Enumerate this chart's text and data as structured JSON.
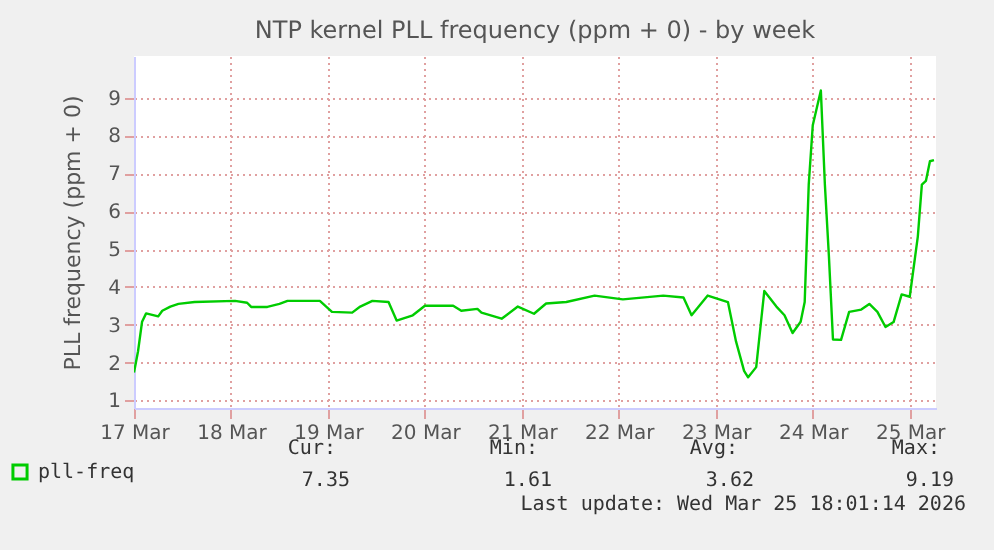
{
  "chart_data": {
    "type": "line",
    "title": "NTP kernel PLL frequency (ppm + 0) - by week",
    "ylabel": "PLL frequency (ppm + 0)",
    "x": [
      "2026-03-17T00:00",
      "2026-03-17T01:00",
      "2026-03-17T02:00",
      "2026-03-17T03:00",
      "2026-03-17T06:00",
      "2026-03-17T07:00",
      "2026-03-17T09:00",
      "2026-03-17T11:00",
      "2026-03-17T15:00",
      "2026-03-18T01:00",
      "2026-03-18T04:00",
      "2026-03-18T05:00",
      "2026-03-18T09:00",
      "2026-03-18T12:00",
      "2026-03-18T14:00",
      "2026-03-18T22:00",
      "2026-03-19T01:00",
      "2026-03-19T06:00",
      "2026-03-19T08:00",
      "2026-03-19T11:00",
      "2026-03-19T15:00",
      "2026-03-19T17:00",
      "2026-03-19T21:00",
      "2026-03-20T00:00",
      "2026-03-20T07:00",
      "2026-03-20T09:00",
      "2026-03-20T13:00",
      "2026-03-20T14:00",
      "2026-03-20T19:00",
      "2026-03-20T23:00",
      "2026-03-21T03:00",
      "2026-03-21T06:00",
      "2026-03-21T11:00",
      "2026-03-21T18:00",
      "2026-03-22T01:00",
      "2026-03-22T11:00",
      "2026-03-22T16:00",
      "2026-03-22T18:00",
      "2026-03-22T22:00",
      "2026-03-23T03:00",
      "2026-03-23T05:00",
      "2026-03-23T07:00",
      "2026-03-23T08:00",
      "2026-03-23T10:00",
      "2026-03-23T12:00",
      "2026-03-23T15:00",
      "2026-03-23T17:00",
      "2026-03-23T19:00",
      "2026-03-23T21:00",
      "2026-03-23T22:00",
      "2026-03-23T23:00",
      "2026-03-24T00:00",
      "2026-03-24T02:00",
      "2026-03-24T03:00",
      "2026-03-24T04:00",
      "2026-03-24T05:00",
      "2026-03-24T07:00",
      "2026-03-24T09:00",
      "2026-03-24T12:00",
      "2026-03-24T14:00",
      "2026-03-24T16:00",
      "2026-03-24T18:00",
      "2026-03-24T20:00",
      "2026-03-24T22:00",
      "2026-03-25T00:00",
      "2026-03-25T02:00",
      "2026-03-25T03:00",
      "2026-03-25T04:00",
      "2026-03-25T05:00",
      "2026-03-25T06:00"
    ],
    "series": [
      {
        "name": "pll-freq",
        "color": "#00cc00",
        "values": [
          1.74,
          2.3,
          3.08,
          3.3,
          3.22,
          3.37,
          3.48,
          3.55,
          3.6,
          3.63,
          3.58,
          3.47,
          3.47,
          3.55,
          3.63,
          3.63,
          3.34,
          3.32,
          3.48,
          3.63,
          3.6,
          3.11,
          3.25,
          3.5,
          3.5,
          3.37,
          3.42,
          3.32,
          3.16,
          3.48,
          3.29,
          3.56,
          3.6,
          3.77,
          3.67,
          3.77,
          3.72,
          3.25,
          3.77,
          3.6,
          2.56,
          1.78,
          1.61,
          1.88,
          3.89,
          3.48,
          3.25,
          2.78,
          3.08,
          3.6,
          6.7,
          8.27,
          9.19,
          6.7,
          4.8,
          2.61,
          2.6,
          3.34,
          3.4,
          3.55,
          3.34,
          2.94,
          3.07,
          3.8,
          3.74,
          5.33,
          6.7,
          6.8,
          7.32,
          7.35
        ]
      }
    ],
    "xlim": [
      "2026-03-17T00:00",
      "2026-03-25T06:30"
    ],
    "xticks": [
      {
        "value": "2026-03-17T00:00",
        "label": "17 Mar"
      },
      {
        "value": "2026-03-18T00:00",
        "label": "18 Mar"
      },
      {
        "value": "2026-03-19T00:00",
        "label": "19 Mar"
      },
      {
        "value": "2026-03-20T00:00",
        "label": "20 Mar"
      },
      {
        "value": "2026-03-21T00:00",
        "label": "21 Mar"
      },
      {
        "value": "2026-03-22T00:00",
        "label": "22 Mar"
      },
      {
        "value": "2026-03-23T00:00",
        "label": "23 Mar"
      },
      {
        "value": "2026-03-24T00:00",
        "label": "24 Mar"
      },
      {
        "value": "2026-03-25T00:00",
        "label": "25 Mar"
      }
    ],
    "ylim": [
      0.8,
      10.1
    ],
    "yticks": [
      1,
      2,
      3,
      4,
      5,
      6,
      7,
      8,
      9
    ],
    "grid": true,
    "legend": "bottom left",
    "line_style": "solid",
    "marker": "none",
    "annotations": [
      "Cur:",
      "Min:",
      "Avg:",
      "Max:",
      "7.35",
      "1.61",
      "3.62",
      "9.19",
      "Last update: Wed Mar 25 18:01:14 2026"
    ]
  }
}
